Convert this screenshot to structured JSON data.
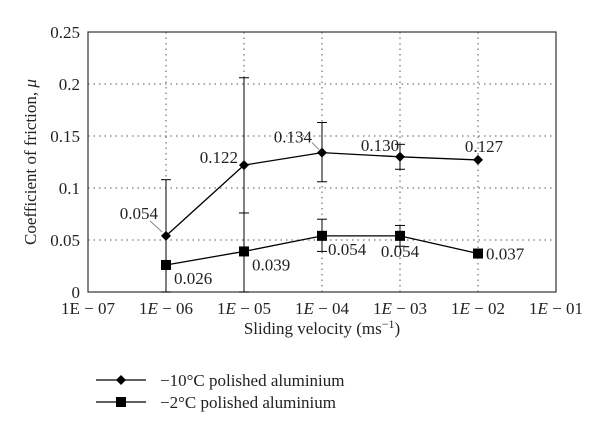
{
  "chart_data": {
    "type": "line",
    "xlabel": "Sliding velocity (ms",
    "xlabel_unit_sup": "−1",
    "xlabel_close": ")",
    "ylabel": "Coefficient of friction, ",
    "ylabel_symbol": "μ",
    "x_scale": "log",
    "x_tick_labels": [
      {
        "pre": "1E − 07",
        "e": "",
        "post": ""
      },
      {
        "pre": "1",
        "e": "E",
        "post": " − 06"
      },
      {
        "pre": "1",
        "e": "E",
        "post": " − 05"
      },
      {
        "pre": "1",
        "e": "E",
        "post": " − 04"
      },
      {
        "pre": "1",
        "e": "E",
        "post": " − 03"
      },
      {
        "pre": "1",
        "e": "E",
        "post": " − 02"
      },
      {
        "pre": "1",
        "e": "E",
        "post": " − 01"
      }
    ],
    "xlim_exp": [
      -7,
      -1
    ],
    "ylim": [
      0,
      0.25
    ],
    "y_ticks": [
      "0",
      "0.05",
      "0.1",
      "0.15",
      "0.2",
      "0.25"
    ],
    "grid": "dotted",
    "legend_position": "bottom-left, below chart",
    "series": [
      {
        "name": "−10°C polished aluminium",
        "marker": "diamond",
        "x": [
          1e-06,
          1e-05,
          0.0001,
          0.001,
          0.01
        ],
        "y": [
          0.054,
          0.122,
          0.134,
          0.13,
          0.127
        ],
        "y_err_low": [
          0.0,
          0.0,
          0.106,
          0.118,
          0.127
        ],
        "y_err_high": [
          0.108,
          0.206,
          0.163,
          0.142,
          0.127
        ],
        "labels": [
          "0.054",
          "0.122",
          "0.134",
          "0.130",
          "0.127"
        ]
      },
      {
        "name": "−2°C polished aluminium",
        "marker": "square",
        "x": [
          1e-06,
          1e-05,
          0.0001,
          0.001,
          0.01
        ],
        "y": [
          0.026,
          0.039,
          0.054,
          0.054,
          0.037
        ],
        "y_err_low": [
          0.0,
          0.0,
          0.039,
          0.044,
          0.037
        ],
        "y_err_high": [
          0.026,
          0.076,
          0.07,
          0.064,
          0.037
        ],
        "labels": [
          "0.026",
          "0.039",
          "0.054",
          "0.054",
          "0.037"
        ]
      }
    ]
  }
}
